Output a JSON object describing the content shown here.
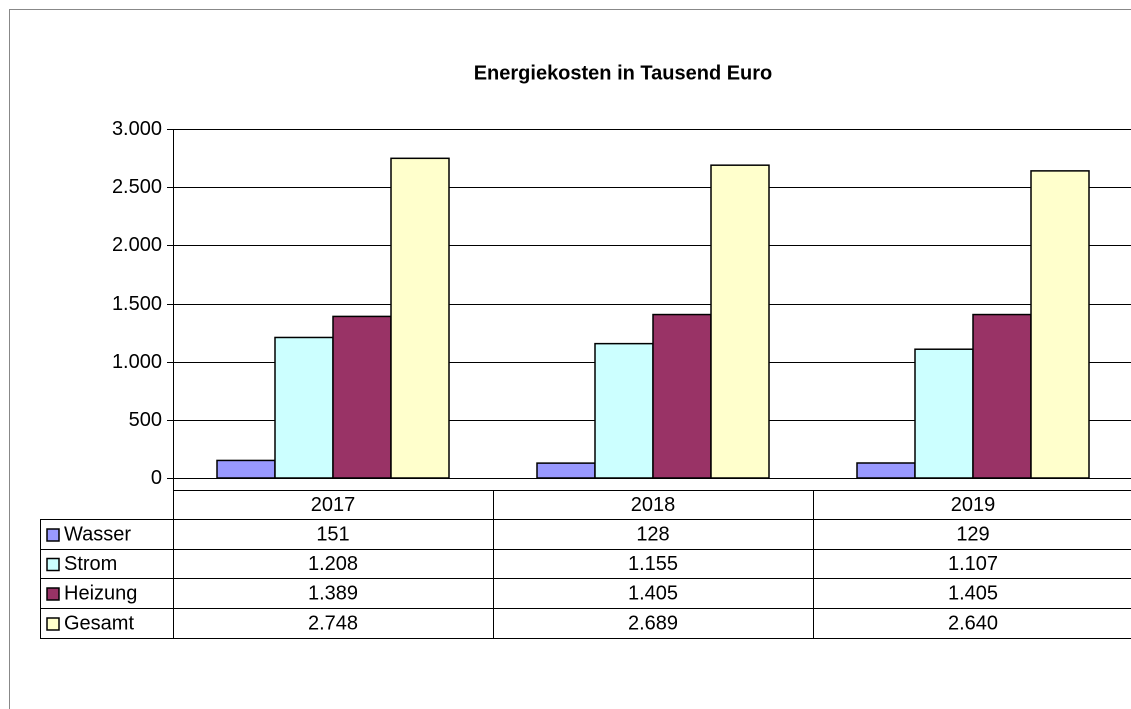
{
  "chart_data": {
    "type": "bar",
    "title": "Energiekosten in Tausend Euro",
    "categories": [
      "2017",
      "2018",
      "2019"
    ],
    "series": [
      {
        "name": "Wasser",
        "color": "#9999ff",
        "values": [
          151,
          128,
          129
        ],
        "value_labels": [
          "151",
          "128",
          "129"
        ]
      },
      {
        "name": "Strom",
        "color": "#ccffff",
        "values": [
          1208,
          1155,
          1107
        ],
        "value_labels": [
          "1.208",
          "1.155",
          "1.107"
        ]
      },
      {
        "name": "Heizung",
        "color": "#993366",
        "values": [
          1389,
          1405,
          1405
        ],
        "value_labels": [
          "1.389",
          "1.405",
          "1.405"
        ]
      },
      {
        "name": "Gesamt",
        "color": "#ffffcc",
        "values": [
          2748,
          2689,
          2640
        ],
        "value_labels": [
          "2.748",
          "2.689",
          "2.640"
        ]
      }
    ],
    "ylim": [
      0,
      3000
    ],
    "yticks": [
      0,
      500,
      {
        "value": 1000,
        "label": "1.000"
      },
      {
        "value": 1500,
        "label": "1.500"
      },
      {
        "value": 2000,
        "label": "2.000"
      },
      {
        "value": 2500,
        "label": "2.500"
      },
      {
        "value": 3000,
        "label": "3.000"
      }
    ],
    "grid": true
  }
}
